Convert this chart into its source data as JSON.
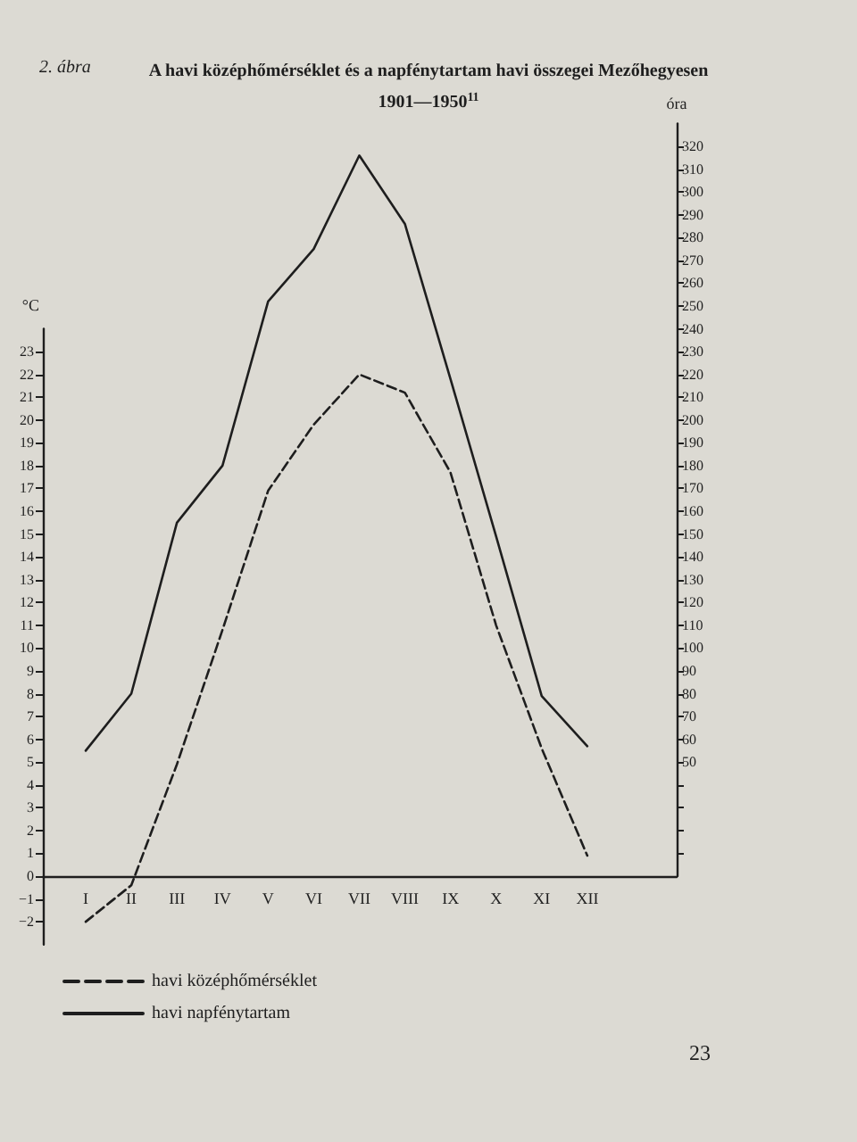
{
  "chart_data": {
    "type": "line",
    "title": "A havi középhőmérséklet és a napfénytartam havi összegei Mezőhegyesen",
    "subtitle": "1901—1950$^{11}$",
    "ylabel": "°C",
    "y2label": "óra",
    "annotations": [
      "2. ábra",
      "23"
    ],
    "categories": [
      "I",
      "II",
      "III",
      "IV",
      "V",
      "VI",
      "VII",
      "VIII",
      "IX",
      "X",
      "XI",
      "XII"
    ],
    "series": [
      {
        "name": "havi középhőmérséklet",
        "color": "#1e1e1e",
        "line_style": "dashed",
        "values": [
          -2.0,
          -0.4,
          4.9,
          10.8,
          16.9,
          19.8,
          22.0,
          21.2,
          17.7,
          11.0,
          5.6,
          0.9
        ]
      },
      {
        "name": "havi napfénytartam",
        "color": "#1e1e1e",
        "line_style": "solid",
        "axis": "y2",
        "values": [
          55,
          80,
          155,
          180,
          252,
          275,
          316,
          286,
          218,
          149,
          79,
          57
        ]
      }
    ],
    "ylim": [
      -3,
      24
    ],
    "yticks": [
      -2,
      -1,
      0,
      1,
      2,
      3,
      4,
      5,
      6,
      7,
      8,
      9,
      10,
      11,
      12,
      13,
      14,
      15,
      16,
      17,
      18,
      19,
      20,
      21,
      22,
      23
    ],
    "y2lim": [
      0,
      330
    ],
    "y2ticks": [
      {
        "value": 10,
        "label": null
      },
      {
        "value": 20,
        "label": null
      },
      {
        "value": 30,
        "label": null
      },
      {
        "value": 40,
        "label": null
      },
      50,
      60,
      70,
      80,
      90,
      100,
      110,
      120,
      130,
      140,
      150,
      160,
      170,
      180,
      190,
      200,
      210,
      220,
      230,
      240,
      250,
      260,
      270,
      280,
      290,
      300,
      310,
      320
    ],
    "grid": false,
    "legend": "bottom left",
    "marker": "none"
  }
}
